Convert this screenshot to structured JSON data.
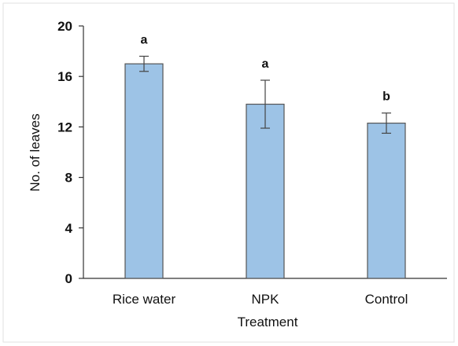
{
  "chart_data": {
    "type": "bar",
    "title": "",
    "xlabel": "Treatment",
    "ylabel": "No. of leaves",
    "ylim": [
      0,
      20
    ],
    "yticks": [
      0,
      4,
      8,
      12,
      16,
      20
    ],
    "grid": false,
    "legend": "none",
    "categories": [
      "Rice water",
      "NPK",
      "Control"
    ],
    "values": [
      17.0,
      13.8,
      12.3
    ],
    "error": [
      0.6,
      1.9,
      0.8
    ],
    "annotations": [
      "a",
      "a",
      "b"
    ],
    "bar_color": "#9dc3e6",
    "bar_edge_color": "#555555"
  }
}
